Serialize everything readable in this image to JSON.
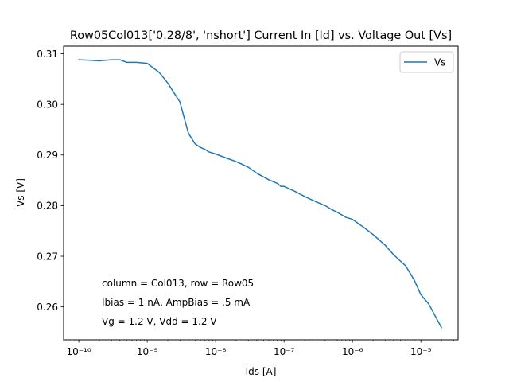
{
  "chart_data": {
    "type": "line",
    "title": "Row05Col013['0.28/8', 'nshort'] Current In [Id] vs. Voltage Out [Vs]",
    "xlabel": "Ids [A]",
    "ylabel": "Vs [V]",
    "xscale": "log",
    "xlim": [
      6e-11,
      3.5e-05
    ],
    "ylim": [
      0.2535,
      0.3115
    ],
    "xticks": [
      {
        "value": 1e-10,
        "label": "10⁻¹⁰"
      },
      {
        "value": 1e-09,
        "label": "10⁻⁹"
      },
      {
        "value": 1e-08,
        "label": "10⁻⁸"
      },
      {
        "value": 1e-07,
        "label": "10⁻⁷"
      },
      {
        "value": 1e-06,
        "label": "10⁻⁶"
      },
      {
        "value": 1e-05,
        "label": "10⁻⁵"
      }
    ],
    "yticks": [
      {
        "value": 0.26,
        "label": "0.26"
      },
      {
        "value": 0.27,
        "label": "0.27"
      },
      {
        "value": 0.28,
        "label": "0.28"
      },
      {
        "value": 0.29,
        "label": "0.29"
      },
      {
        "value": 0.3,
        "label": "0.30"
      },
      {
        "value": 0.31,
        "label": "0.31"
      }
    ],
    "grid": false,
    "legend": {
      "position": "top-right"
    },
    "series": [
      {
        "name": "Vs",
        "color": "#1f77b4",
        "x": [
          1e-10,
          1.5e-10,
          2e-10,
          3e-10,
          4e-10,
          5e-10,
          7e-10,
          1e-09,
          1.5e-09,
          2e-09,
          3e-09,
          4e-09,
          5e-09,
          6e-09,
          7e-09,
          8e-09,
          1e-08,
          1.5e-08,
          2e-08,
          3e-08,
          4e-08,
          6e-08,
          8e-08,
          9e-08,
          1e-07,
          1.5e-07,
          2e-07,
          3e-07,
          4e-07,
          5e-07,
          6e-07,
          8e-07,
          1e-06,
          1.5e-06,
          2e-06,
          3e-06,
          4e-06,
          6e-06,
          8e-06,
          1e-05,
          1.3e-05,
          2e-05
        ],
        "y": [
          0.3088,
          0.3087,
          0.3086,
          0.3088,
          0.3088,
          0.3083,
          0.3083,
          0.3081,
          0.3063,
          0.3042,
          0.3005,
          0.2943,
          0.2922,
          0.2915,
          0.2911,
          0.2906,
          0.2902,
          0.2893,
          0.2887,
          0.2876,
          0.2864,
          0.2851,
          0.2844,
          0.2838,
          0.2838,
          0.2827,
          0.2818,
          0.2807,
          0.28,
          0.2792,
          0.2787,
          0.2777,
          0.2773,
          0.2756,
          0.2743,
          0.2722,
          0.2703,
          0.2681,
          0.2653,
          0.2624,
          0.2606,
          0.2559
        ]
      }
    ],
    "annotations": [
      "column = Col013, row = Row05",
      "Ibias = 1 nA, AmpBias = .5 mA",
      "Vg = 1.2 V, Vdd = 1.2 V"
    ]
  }
}
